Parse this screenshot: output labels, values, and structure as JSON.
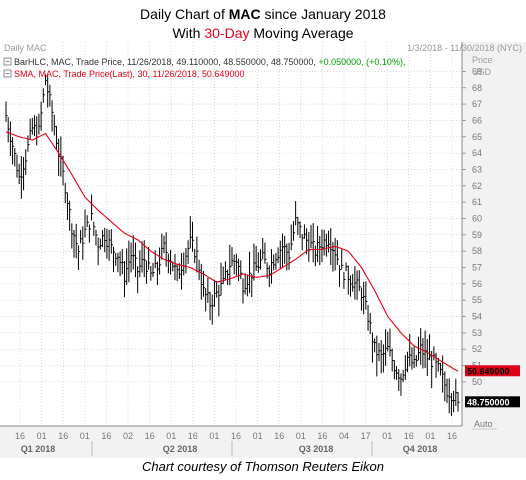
{
  "title": {
    "line1_prefix": "Daily Chart of ",
    "ticker": "MAC",
    "line1_suffix": " since January 2018",
    "line2_prefix": "With ",
    "period": "30-Day",
    "line2_suffix": " Moving Average"
  },
  "header": {
    "chart_name": "Daily MAC",
    "date_range": "1/3/2018 - 11/30/2018 (NYC)",
    "price_label": "Price",
    "currency": "USD",
    "auto_label": "Auto"
  },
  "legend": {
    "bar_prefix": "BarHLC, MAC, Trade Price, 11/26/2018, 49.110000, 48.550000, 48.750000, ",
    "bar_change": "+0.050000, (+0.10%),",
    "sma": "SMA, MAC, Trade Price(Last),  30,  11/26/2018, 50.649000"
  },
  "badges": {
    "sma_value": "50.649000",
    "price_value": "48.750000"
  },
  "credit": "Chart courtesy of Thomson Reuters Eikon",
  "colors": {
    "price_bars": "#000000",
    "sma_line": "#e3001b",
    "grid": "#b8b8b8",
    "axis_bg": "#f2f2f2",
    "accent_green": "#00a000"
  },
  "chart_data": {
    "type": "line",
    "y_ticks": [
      50,
      51,
      52,
      53,
      54,
      55,
      56,
      57,
      58,
      59,
      60,
      61,
      62,
      63,
      64,
      65,
      66,
      67,
      68,
      69
    ],
    "ylim": [
      47.3,
      70.8
    ],
    "x_tick_labels": [
      "16",
      "01",
      "16",
      "01",
      "16",
      "02",
      "16",
      "01",
      "16",
      "01",
      "16",
      "01",
      "16",
      "01",
      "16",
      "04",
      "17",
      "01",
      "16",
      "01",
      "16"
    ],
    "quarter_labels": [
      "Q1 2018",
      "Q2 2018",
      "Q3 2018",
      "Q4 2018"
    ],
    "price_series": {
      "name": "MAC Trade Price (BarHLC)",
      "points": [
        [
          0,
          66.3
        ],
        [
          3,
          64.5
        ],
        [
          6,
          62.5
        ],
        [
          9,
          63.8
        ],
        [
          12,
          65.5
        ],
        [
          15,
          65.3
        ],
        [
          18,
          68.5
        ],
        [
          21,
          66.5
        ],
        [
          24,
          64.0
        ],
        [
          27,
          62.0
        ],
        [
          30,
          59.5
        ],
        [
          33,
          58.0
        ],
        [
          36,
          59.2
        ],
        [
          39,
          60.0
        ],
        [
          42,
          58.5
        ],
        [
          45,
          59.0
        ],
        [
          48,
          58.2
        ],
        [
          51,
          57.8
        ],
        [
          54,
          56.5
        ],
        [
          57,
          57.8
        ],
        [
          60,
          56.8
        ],
        [
          63,
          57.5
        ],
        [
          66,
          56.5
        ],
        [
          69,
          57.0
        ],
        [
          72,
          58.2
        ],
        [
          75,
          57.6
        ],
        [
          78,
          56.5
        ],
        [
          81,
          57.5
        ],
        [
          84,
          58.5
        ],
        [
          87,
          57.8
        ],
        [
          90,
          55.5
        ],
        [
          93,
          54.8
        ],
        [
          96,
          55.4
        ],
        [
          99,
          56.0
        ],
        [
          102,
          57.2
        ],
        [
          105,
          57.5
        ],
        [
          108,
          56.0
        ],
        [
          111,
          56.5
        ],
        [
          114,
          57.0
        ],
        [
          117,
          57.5
        ],
        [
          120,
          57.0
        ],
        [
          123,
          57.8
        ],
        [
          126,
          58.3
        ],
        [
          129,
          57.8
        ],
        [
          132,
          59.8
        ],
        [
          135,
          59.0
        ],
        [
          138,
          58.5
        ],
        [
          141,
          58.0
        ],
        [
          144,
          58.5
        ],
        [
          147,
          58.8
        ],
        [
          150,
          58.0
        ],
        [
          153,
          56.8
        ],
        [
          156,
          56.5
        ],
        [
          159,
          56.0
        ],
        [
          162,
          55.5
        ],
        [
          165,
          54.0
        ],
        [
          168,
          52.0
        ],
        [
          171,
          51.5
        ],
        [
          174,
          52.0
        ],
        [
          177,
          51.0
        ],
        [
          180,
          50.3
        ],
        [
          183,
          51.5
        ],
        [
          186,
          51.0
        ],
        [
          189,
          52.0
        ],
        [
          192,
          51.5
        ],
        [
          195,
          51.2
        ],
        [
          198,
          50.5
        ],
        [
          201,
          49.5
        ],
        [
          204,
          49.2
        ],
        [
          206,
          48.75
        ]
      ]
    },
    "sma_series": {
      "name": "SMA 30 (Trade Price Last)",
      "points": [
        [
          0,
          65.3
        ],
        [
          6,
          65.0
        ],
        [
          12,
          64.8
        ],
        [
          18,
          65.2
        ],
        [
          24,
          64.0
        ],
        [
          30,
          62.7
        ],
        [
          36,
          61.3
        ],
        [
          42,
          60.5
        ],
        [
          48,
          59.8
        ],
        [
          54,
          59.1
        ],
        [
          60,
          58.7
        ],
        [
          66,
          58.0
        ],
        [
          72,
          57.5
        ],
        [
          78,
          57.2
        ],
        [
          84,
          57.0
        ],
        [
          90,
          56.6
        ],
        [
          96,
          56.1
        ],
        [
          102,
          56.3
        ],
        [
          108,
          56.6
        ],
        [
          114,
          56.4
        ],
        [
          120,
          56.5
        ],
        [
          126,
          57.0
        ],
        [
          132,
          57.5
        ],
        [
          138,
          58.1
        ],
        [
          144,
          58.1
        ],
        [
          150,
          58.3
        ],
        [
          156,
          58.0
        ],
        [
          162,
          57.0
        ],
        [
          168,
          55.6
        ],
        [
          174,
          54.0
        ],
        [
          180,
          53.0
        ],
        [
          186,
          52.2
        ],
        [
          192,
          51.8
        ],
        [
          198,
          51.3
        ],
        [
          204,
          50.8
        ],
        [
          206,
          50.649
        ]
      ]
    }
  }
}
